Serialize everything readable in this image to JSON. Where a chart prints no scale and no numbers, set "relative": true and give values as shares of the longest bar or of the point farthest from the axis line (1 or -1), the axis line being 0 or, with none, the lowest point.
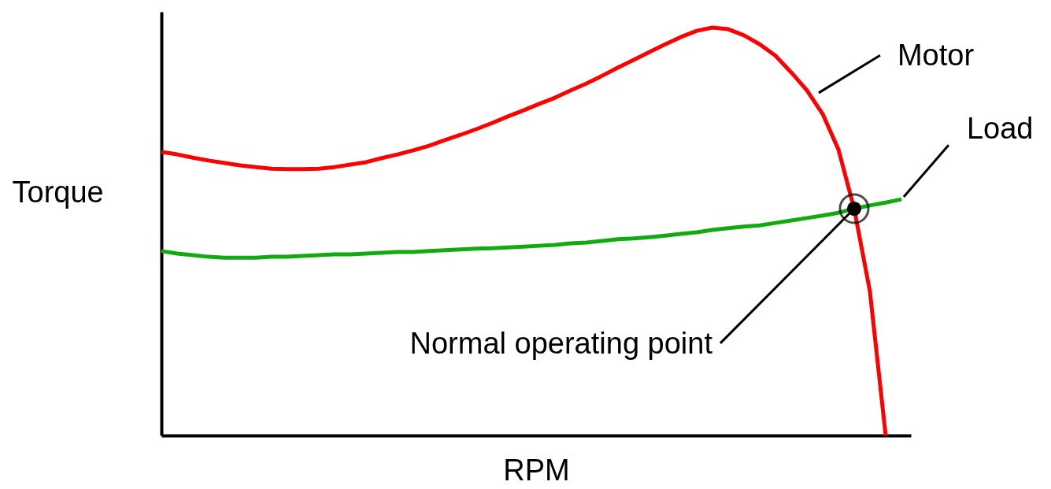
{
  "chart_data": {
    "type": "line",
    "xlabel": "RPM",
    "ylabel": "Torque",
    "relative": true,
    "categories": [
      null,
      null,
      null,
      null,
      null,
      null,
      null,
      null,
      null,
      null,
      null,
      null,
      null,
      null,
      null,
      null,
      null,
      null,
      null,
      null,
      null,
      null,
      null,
      null,
      null,
      null,
      null,
      null,
      null,
      null,
      null,
      null,
      null,
      null,
      null,
      null,
      null,
      null,
      null,
      null,
      null,
      null,
      null,
      null,
      null,
      null,
      null,
      null
    ],
    "series": [
      {
        "name": "Motor",
        "color": "#ff0000",
        "values": [
          0.695,
          0.689,
          0.681,
          0.674,
          0.668,
          0.662,
          0.658,
          0.654,
          0.653,
          0.653,
          0.654,
          0.658,
          0.664,
          0.67,
          0.68,
          0.689,
          0.699,
          0.71,
          0.724,
          0.737,
          0.751,
          0.766,
          0.782,
          0.797,
          0.813,
          0.828,
          0.846,
          0.863,
          0.882,
          0.902,
          0.921,
          0.94,
          0.959,
          0.977,
          0.992,
          1.0,
          0.996,
          0.981,
          0.959,
          0.931,
          0.89,
          0.846,
          0.788,
          0.701,
          0.556,
          0.353,
          0,
          null
        ]
      },
      {
        "name": "Load",
        "color": "#11aa11",
        "values": [
          0.452,
          0.446,
          0.442,
          0.438,
          0.436,
          0.436,
          0.436,
          0.438,
          0.438,
          0.44,
          0.442,
          0.444,
          0.444,
          0.446,
          0.448,
          0.45,
          0.45,
          0.452,
          0.454,
          0.456,
          0.458,
          0.459,
          0.461,
          0.463,
          0.465,
          0.467,
          0.471,
          0.473,
          0.477,
          0.481,
          0.483,
          0.486,
          0.49,
          0.494,
          0.498,
          0.504,
          0.508,
          0.512,
          0.515,
          0.521,
          0.527,
          0.533,
          0.539,
          0.546,
          0.556,
          0.564,
          0.571,
          0.579
        ]
      }
    ],
    "annotations": [
      "Normal operating point"
    ]
  }
}
